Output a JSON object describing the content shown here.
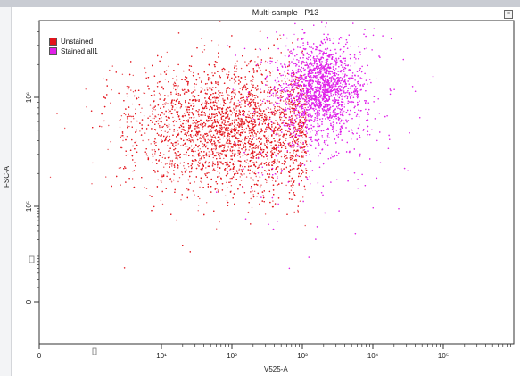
{
  "window": {
    "title": "Multi-sample : P13",
    "close_icon": "close-icon"
  },
  "chart_data": {
    "type": "scatter",
    "title": "Multi-sample : P13",
    "xlabel": "V525-A",
    "ylabel": "FSC-A",
    "x_scale": "biexponential",
    "y_scale": "biexponential",
    "x_ticks": [
      {
        "value": 0,
        "label": "0"
      },
      {
        "value": 10,
        "label": "10¹"
      },
      {
        "value": 100,
        "label": "10²"
      },
      {
        "value": 1000,
        "label": "10³"
      },
      {
        "value": 10000,
        "label": "10⁴"
      },
      {
        "value": 100000,
        "label": "10⁵"
      }
    ],
    "y_ticks": [
      {
        "value": 0,
        "label": "0"
      },
      {
        "value": 100000,
        "label": "10⁵"
      },
      {
        "value": 1000000,
        "label": "10⁶"
      }
    ],
    "legend": {
      "placement": "top-left"
    },
    "series": [
      {
        "name": "Unstained",
        "color": "#e3141c",
        "clusters": [
          {
            "x_center": 150,
            "y_center": 500000,
            "count": 7000
          }
        ]
      },
      {
        "name": "Stained all1",
        "color": "#e020e8",
        "clusters": [
          {
            "x_center": 1800,
            "y_center": 1200000,
            "count": 5500
          }
        ]
      }
    ]
  }
}
